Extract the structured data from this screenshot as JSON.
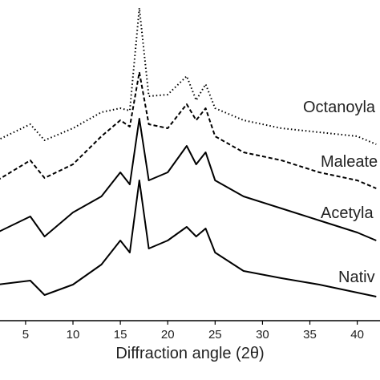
{
  "chart_data": {
    "type": "line",
    "xlabel": "Diffraction angle (2θ)",
    "x": [
      2,
      5.5,
      7,
      10,
      13,
      15,
      16,
      17,
      18,
      20,
      22,
      23,
      24,
      25,
      28,
      32,
      36,
      40,
      42
    ],
    "xlim": [
      2.3,
      42.4
    ],
    "xticks": [
      5,
      10,
      15,
      20,
      25,
      30,
      35,
      40
    ],
    "ylim": [
      0,
      100
    ],
    "series": [
      {
        "name": "Nativ",
        "color": "#000000",
        "dash": "solid",
        "values": [
          11.25,
          12.5,
          8,
          11.25,
          17.5,
          25,
          21.25,
          43.75,
          22.5,
          25,
          29.25,
          26.25,
          28.75,
          21.25,
          15.5,
          13.25,
          11.25,
          8.75,
          7.5
        ]
      },
      {
        "name": "Acetyla",
        "color": "#000000",
        "dash": "solid",
        "values": [
          27.5,
          32.5,
          26.25,
          33.75,
          38.75,
          46.25,
          42.5,
          63,
          43.75,
          46.25,
          54.5,
          48.75,
          52.5,
          43.75,
          38.75,
          35,
          31.25,
          27.5,
          25
        ]
      },
      {
        "name": "Maleate",
        "color": "#000000",
        "dash": "dashed",
        "values": [
          43.75,
          50,
          44.5,
          48.75,
          57.5,
          62.5,
          60.5,
          77.5,
          61.25,
          60,
          67.5,
          62.5,
          66.25,
          57.5,
          52.5,
          50,
          46.25,
          43.75,
          41.25
        ]
      },
      {
        "name": "Octanoyla",
        "color": "#000000",
        "dash": "dotted",
        "values": [
          56.25,
          61.25,
          56.25,
          60,
          65,
          66.25,
          65.5,
          97.5,
          70,
          70.5,
          76.25,
          68.75,
          73.75,
          66.25,
          62.5,
          60,
          58.75,
          57.5,
          55
        ]
      }
    ]
  }
}
